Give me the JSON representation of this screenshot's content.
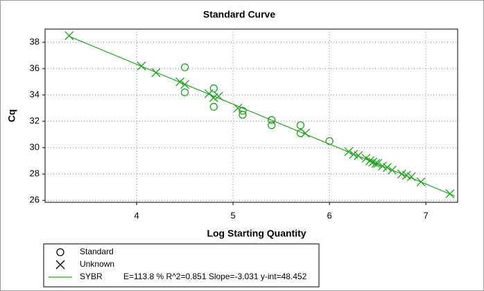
{
  "chart_data": {
    "type": "scatter",
    "title": "Standard Curve",
    "x_label": "Log Starting Quantity",
    "y_label": "Cq",
    "xlim": [
      3.05,
      7.33
    ],
    "ylim": [
      25.85,
      39
    ],
    "xticks": [
      4,
      5,
      6,
      7
    ],
    "yticks": [
      26,
      28,
      30,
      32,
      34,
      36,
      38
    ],
    "grid": true,
    "legend": "bottom-left",
    "fit_stats": "E=113.8 % R^2=0.851 Slope=-3.031 y-int=48.452",
    "series": [
      {
        "name": "Standard",
        "marker": "circle",
        "color": "#22a022",
        "x": [
          4.5,
          4.5,
          4.8,
          4.8,
          5.1,
          5.1,
          5.4,
          5.4,
          5.7,
          5.7,
          6.0
        ],
        "values": [
          36.1,
          34.2,
          34.5,
          33.1,
          32.8,
          32.5,
          32.1,
          31.7,
          31.7,
          31.1,
          30.5
        ]
      },
      {
        "name": "Unknown",
        "marker": "x",
        "color": "#22a022",
        "x": [
          3.3,
          4.05,
          4.2,
          4.45,
          4.5,
          4.75,
          4.8,
          4.85,
          5.05,
          5.75,
          6.2,
          6.25,
          6.3,
          6.38,
          6.42,
          6.45,
          6.48,
          6.5,
          6.55,
          6.6,
          6.65,
          6.75,
          6.8,
          6.85,
          6.95,
          7.25
        ],
        "values": [
          38.5,
          36.2,
          35.7,
          35.0,
          34.8,
          34.1,
          33.8,
          33.9,
          33.0,
          31.1,
          29.7,
          29.5,
          29.4,
          29.2,
          29.0,
          28.9,
          28.8,
          28.8,
          28.6,
          28.5,
          28.3,
          28.0,
          27.9,
          27.8,
          27.4,
          26.5
        ]
      },
      {
        "name": "SYBR",
        "marker": "line",
        "color": "#22a022",
        "x": [
          3.3,
          7.3
        ],
        "values": [
          38.45,
          26.33
        ]
      }
    ]
  }
}
